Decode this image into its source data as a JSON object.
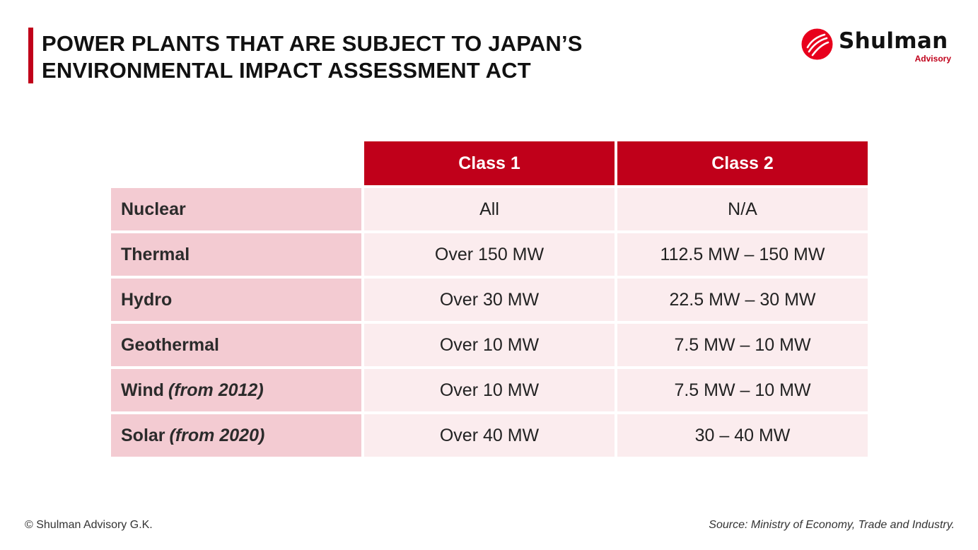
{
  "title": {
    "line1": "POWER PLANTS THAT ARE SUBJECT TO JAPAN’S",
    "line2": "ENVIRONMENTAL IMPACT ASSESSMENT ACT"
  },
  "logo": {
    "name": "Shulman",
    "sub": "Advisory",
    "brand_color": "#c0001a"
  },
  "table": {
    "headers": [
      "Class 1",
      "Class 2"
    ],
    "rows": [
      {
        "type": "Nuclear",
        "note": "",
        "class1": "All",
        "class2": "N/A"
      },
      {
        "type": "Thermal",
        "note": "",
        "class1": "Over 150 MW",
        "class2": "112.5 MW – 150 MW"
      },
      {
        "type": "Hydro",
        "note": "",
        "class1": "Over 30 MW",
        "class2": "22.5 MW – 30 MW"
      },
      {
        "type": "Geothermal",
        "note": "",
        "class1": "Over 10 MW",
        "class2": "7.5 MW – 10 MW"
      },
      {
        "type": "Wind",
        "note": "(from 2012)",
        "class1": "Over 10 MW",
        "class2": "7.5 MW – 10 MW"
      },
      {
        "type": "Solar",
        "note": "(from 2020)",
        "class1": "Over 40 MW",
        "class2": "30 – 40 MW"
      }
    ],
    "colors": {
      "header_bg": "#c0001a",
      "label_bg": "#f3cbd2",
      "value_bg": "#fbecee"
    }
  },
  "footer": {
    "copyright": "© Shulman Advisory G.K.",
    "source": "Source: Ministry of Economy, Trade and Industry."
  }
}
